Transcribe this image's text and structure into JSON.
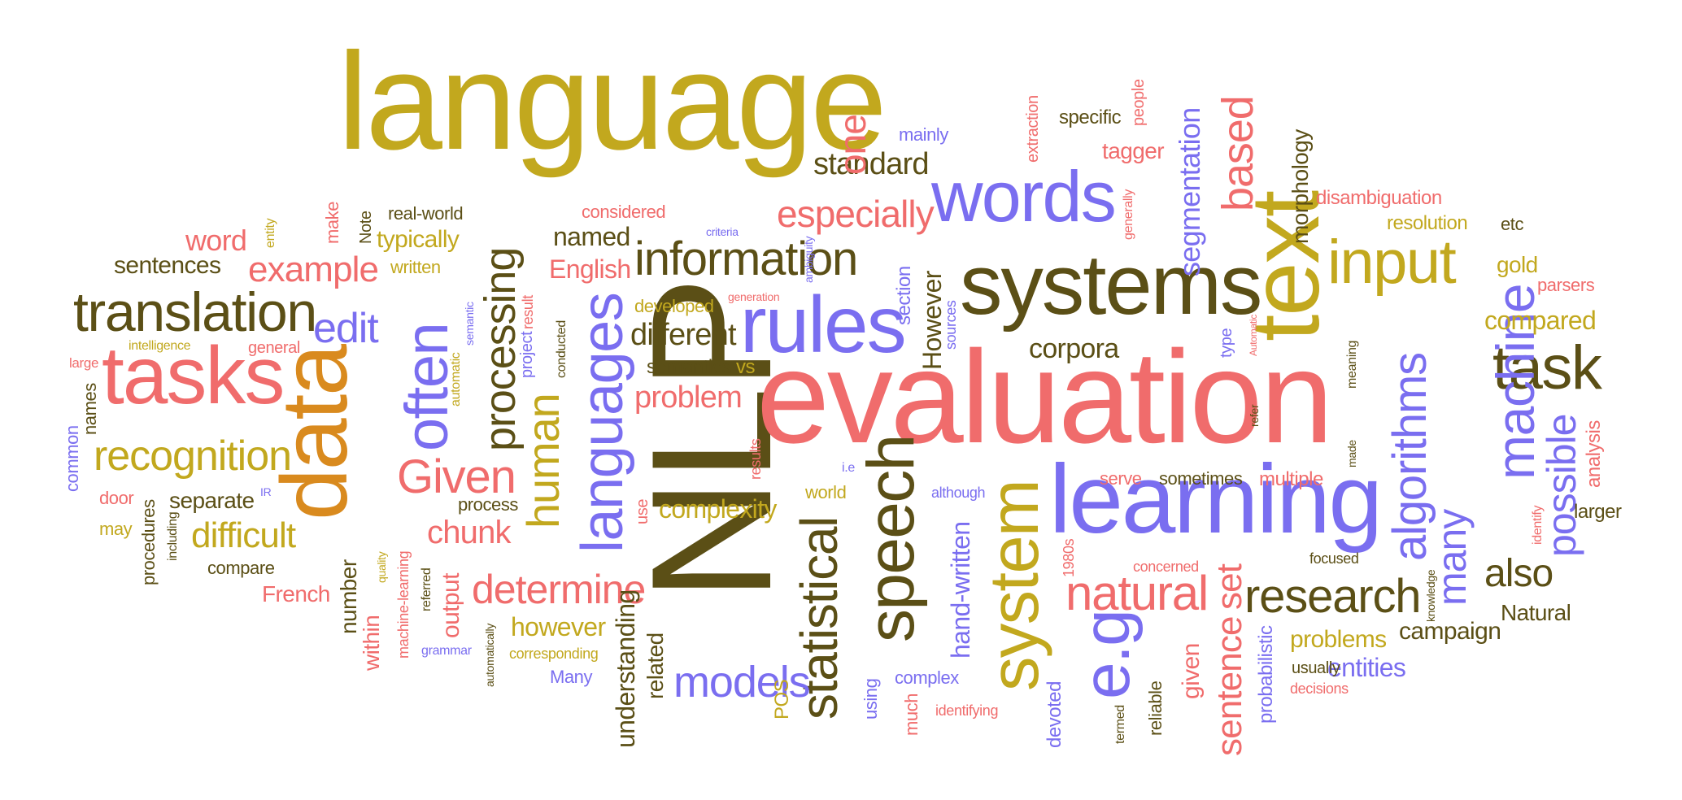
{
  "colors": {
    "olive": "#c2a81e",
    "brown": "#5b4f16",
    "salmon": "#f06c6c",
    "purple": "#7a6ef0",
    "orange": "#d98a1e"
  },
  "words": [
    {
      "text": "language",
      "color": "olive"
    },
    {
      "text": "NLP",
      "color": "brown"
    },
    {
      "text": "evaluation",
      "color": "salmon"
    },
    {
      "text": "learning",
      "color": "purple"
    },
    {
      "text": "systems",
      "color": "brown"
    },
    {
      "text": "words",
      "color": "purple"
    },
    {
      "text": "text",
      "color": "olive"
    },
    {
      "text": "data",
      "color": "orange"
    },
    {
      "text": "tasks",
      "color": "salmon"
    },
    {
      "text": "translation",
      "color": "brown"
    },
    {
      "text": "rules",
      "color": "purple"
    },
    {
      "text": "information",
      "color": "brown"
    },
    {
      "text": "speech",
      "color": "brown"
    },
    {
      "text": "system",
      "color": "olive"
    },
    {
      "text": "e.g",
      "color": "purple"
    },
    {
      "text": "natural",
      "color": "salmon"
    },
    {
      "text": "research",
      "color": "brown"
    },
    {
      "text": "input",
      "color": "olive"
    },
    {
      "text": "task",
      "color": "brown"
    },
    {
      "text": "machine",
      "color": "purple"
    },
    {
      "text": "algorithms",
      "color": "purple"
    },
    {
      "text": "often",
      "color": "purple"
    },
    {
      "text": "languages",
      "color": "purple"
    },
    {
      "text": "Given",
      "color": "salmon"
    },
    {
      "text": "human",
      "color": "olive"
    },
    {
      "text": "processing",
      "color": "brown"
    },
    {
      "text": "statistical",
      "color": "brown"
    },
    {
      "text": "models",
      "color": "purple"
    },
    {
      "text": "determine",
      "color": "salmon"
    },
    {
      "text": "recognition",
      "color": "olive"
    },
    {
      "text": "difficult",
      "color": "olive"
    },
    {
      "text": "example",
      "color": "salmon"
    },
    {
      "text": "edit",
      "color": "purple"
    },
    {
      "text": "especially",
      "color": "salmon"
    },
    {
      "text": "standard",
      "color": "brown"
    },
    {
      "text": "one",
      "color": "salmon"
    },
    {
      "text": "based",
      "color": "salmon"
    },
    {
      "text": "segmentation",
      "color": "purple"
    },
    {
      "text": "possible",
      "color": "purple"
    },
    {
      "text": "many",
      "color": "purple"
    },
    {
      "text": "also",
      "color": "brown"
    },
    {
      "text": "sentence",
      "color": "salmon"
    },
    {
      "text": "set",
      "color": "salmon"
    },
    {
      "text": "corpora",
      "color": "brown"
    },
    {
      "text": "different",
      "color": "brown"
    },
    {
      "text": "problem",
      "color": "salmon"
    },
    {
      "text": "chunk",
      "color": "salmon"
    },
    {
      "text": "English",
      "color": "salmon"
    },
    {
      "text": "complexity",
      "color": "olive"
    },
    {
      "text": "compared",
      "color": "olive"
    },
    {
      "text": "word",
      "color": "salmon"
    },
    {
      "text": "sentences",
      "color": "brown"
    },
    {
      "text": "typically",
      "color": "olive"
    },
    {
      "text": "named",
      "color": "brown"
    },
    {
      "text": "However",
      "color": "brown"
    },
    {
      "text": "hand-written",
      "color": "purple"
    },
    {
      "text": "however",
      "color": "olive"
    },
    {
      "text": "understanding",
      "color": "brown"
    },
    {
      "text": "problems",
      "color": "olive"
    },
    {
      "text": "entities",
      "color": "purple"
    },
    {
      "text": "campaign",
      "color": "brown"
    },
    {
      "text": "Natural",
      "color": "brown"
    },
    {
      "text": "tagger",
      "color": "salmon"
    },
    {
      "text": "specific",
      "color": "brown"
    },
    {
      "text": "morphology",
      "color": "brown"
    },
    {
      "text": "disambiguation",
      "color": "salmon"
    },
    {
      "text": "resolution",
      "color": "olive"
    },
    {
      "text": "gold",
      "color": "olive"
    },
    {
      "text": "parsers",
      "color": "salmon"
    },
    {
      "text": "etc",
      "color": "brown"
    },
    {
      "text": "mainly",
      "color": "purple"
    },
    {
      "text": "considered",
      "color": "salmon"
    },
    {
      "text": "real-world",
      "color": "brown"
    },
    {
      "text": "written",
      "color": "olive"
    },
    {
      "text": "make",
      "color": "salmon"
    },
    {
      "text": "Note",
      "color": "brown"
    },
    {
      "text": "entity",
      "color": "olive"
    },
    {
      "text": "general",
      "color": "salmon"
    },
    {
      "text": "intelligence",
      "color": "olive"
    },
    {
      "text": "large",
      "color": "salmon"
    },
    {
      "text": "names",
      "color": "brown"
    },
    {
      "text": "common",
      "color": "purple"
    },
    {
      "text": "door",
      "color": "salmon"
    },
    {
      "text": "may",
      "color": "olive"
    },
    {
      "text": "procedures",
      "color": "brown"
    },
    {
      "text": "including",
      "color": "brown"
    },
    {
      "text": "separate",
      "color": "brown"
    },
    {
      "text": "compare",
      "color": "brown"
    },
    {
      "text": "French",
      "color": "salmon"
    },
    {
      "text": "number",
      "color": "brown"
    },
    {
      "text": "within",
      "color": "salmon"
    },
    {
      "text": "quality",
      "color": "olive"
    },
    {
      "text": "machine-learning",
      "color": "salmon"
    },
    {
      "text": "referred",
      "color": "brown"
    },
    {
      "text": "output",
      "color": "salmon"
    },
    {
      "text": "automatically",
      "color": "brown"
    },
    {
      "text": "grammar",
      "color": "purple"
    },
    {
      "text": "corresponding",
      "color": "olive"
    },
    {
      "text": "Many",
      "color": "purple"
    },
    {
      "text": "related",
      "color": "brown"
    },
    {
      "text": "POS",
      "color": "olive"
    },
    {
      "text": "using",
      "color": "purple"
    },
    {
      "text": "much",
      "color": "salmon"
    },
    {
      "text": "complex",
      "color": "purple"
    },
    {
      "text": "identifying",
      "color": "salmon"
    },
    {
      "text": "devoted",
      "color": "purple"
    },
    {
      "text": "termed",
      "color": "brown"
    },
    {
      "text": "reliable",
      "color": "brown"
    },
    {
      "text": "given",
      "color": "salmon"
    },
    {
      "text": "probabilistic",
      "color": "purple"
    },
    {
      "text": "usually",
      "color": "brown"
    },
    {
      "text": "decisions",
      "color": "salmon"
    },
    {
      "text": "focused",
      "color": "brown"
    },
    {
      "text": "knowledge",
      "color": "brown"
    },
    {
      "text": "identify",
      "color": "salmon"
    },
    {
      "text": "larger",
      "color": "brown"
    },
    {
      "text": "analysis",
      "color": "salmon"
    },
    {
      "text": "made",
      "color": "brown"
    },
    {
      "text": "multiple",
      "color": "salmon"
    },
    {
      "text": "sometimes",
      "color": "brown"
    },
    {
      "text": "serve",
      "color": "salmon"
    },
    {
      "text": "concerned",
      "color": "salmon"
    },
    {
      "text": "1980s",
      "color": "salmon"
    },
    {
      "text": "although",
      "color": "purple"
    },
    {
      "text": "i.e",
      "color": "purple"
    },
    {
      "text": "world",
      "color": "olive"
    },
    {
      "text": "use",
      "color": "salmon"
    },
    {
      "text": "results",
      "color": "salmon"
    },
    {
      "text": "vs",
      "color": "olive"
    },
    {
      "text": "semantics",
      "color": "brown"
    },
    {
      "text": "developed",
      "color": "olive"
    },
    {
      "text": "conducted",
      "color": "brown"
    },
    {
      "text": "project",
      "color": "purple"
    },
    {
      "text": "result",
      "color": "salmon"
    },
    {
      "text": "automatic",
      "color": "olive"
    },
    {
      "text": "semantic",
      "color": "purple"
    },
    {
      "text": "IR",
      "color": "purple"
    },
    {
      "text": "process",
      "color": "brown"
    },
    {
      "text": "section",
      "color": "purple"
    },
    {
      "text": "sources",
      "color": "purple"
    },
    {
      "text": "generation",
      "color": "salmon"
    },
    {
      "text": "ambiguity",
      "color": "purple"
    },
    {
      "text": "criteria",
      "color": "purple"
    },
    {
      "text": "extraction",
      "color": "salmon"
    },
    {
      "text": "generally",
      "color": "salmon"
    },
    {
      "text": "type",
      "color": "purple"
    },
    {
      "text": "Automatic",
      "color": "salmon"
    },
    {
      "text": "meaning",
      "color": "brown"
    },
    {
      "text": "refer",
      "color": "brown"
    },
    {
      "text": "people",
      "color": "salmon"
    }
  ]
}
